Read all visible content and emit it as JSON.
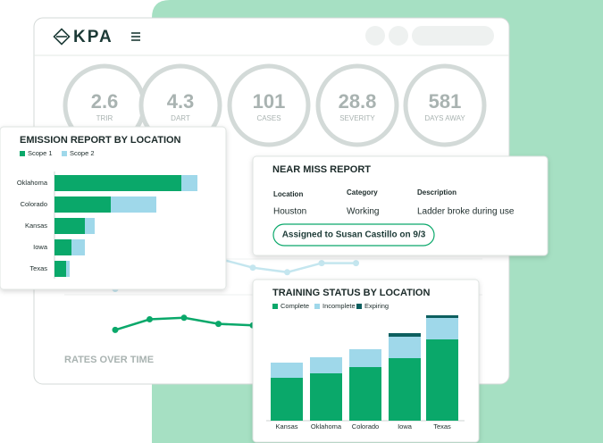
{
  "header": {
    "logo": "KPA"
  },
  "kpis": [
    {
      "value": 2.6,
      "label": "TRIR"
    },
    {
      "value": 4.3,
      "label": "DART"
    },
    {
      "value": 101,
      "label": "CASES"
    },
    {
      "value": 28.8,
      "label": "SEVERITY"
    },
    {
      "value": 581,
      "label": "DAYS AWAY"
    }
  ],
  "near_miss": {
    "title": "NEAR MISS REPORT",
    "columns": [
      "Location",
      "Category",
      "Description"
    ],
    "row": [
      "Houston",
      "Working",
      "Ladder broke during use"
    ],
    "assignment": "Assigned to Susan Castillo on 9/3"
  },
  "chart_data": [
    {
      "type": "hbar",
      "title": "EMISSION REPORT BY LOCATION",
      "categories": [
        "Oklahoma",
        "Colorado",
        "Kansas",
        "Iowa",
        "Texas"
      ],
      "series": [
        {
          "name": "Scope 1",
          "color": "#0aa86a",
          "values": [
            142,
            63,
            34,
            19,
            13
          ]
        },
        {
          "name": "Scope 2",
          "color": "#9fd8ea",
          "values": [
            18,
            51,
            11,
            15,
            4
          ]
        }
      ],
      "xlim": [
        0,
        180
      ]
    },
    {
      "type": "bar",
      "title": "TRAINING STATUS BY LOCATION",
      "categories": [
        "Kansas",
        "Oklahoma",
        "Colorado",
        "Iowa",
        "Texas"
      ],
      "series": [
        {
          "name": "Complete",
          "color": "#0aa86a",
          "values": [
            48,
            53,
            60,
            70,
            91
          ]
        },
        {
          "name": "Incomplete",
          "color": "#9fd8ea",
          "values": [
            17,
            18,
            20,
            24,
            24
          ]
        },
        {
          "name": "Expiring",
          "color": "#0d5f5f",
          "values": [
            0,
            0,
            0,
            4,
            3
          ]
        }
      ],
      "ylim": [
        0,
        120
      ]
    },
    {
      "type": "line",
      "title": "RATES OVER TIME",
      "categories": [
        null,
        null,
        null,
        null,
        null,
        null,
        null,
        null
      ],
      "series": [
        {
          "color": "#0aa86a",
          "values": [
            18,
            25,
            26,
            22,
            21,
            19,
            20,
            21
          ]
        },
        {
          "color": "#c4e6ef",
          "values": [
            45,
            88,
            76,
            65,
            59,
            56,
            62,
            62
          ]
        }
      ],
      "ylim": [
        0,
        100
      ]
    }
  ]
}
